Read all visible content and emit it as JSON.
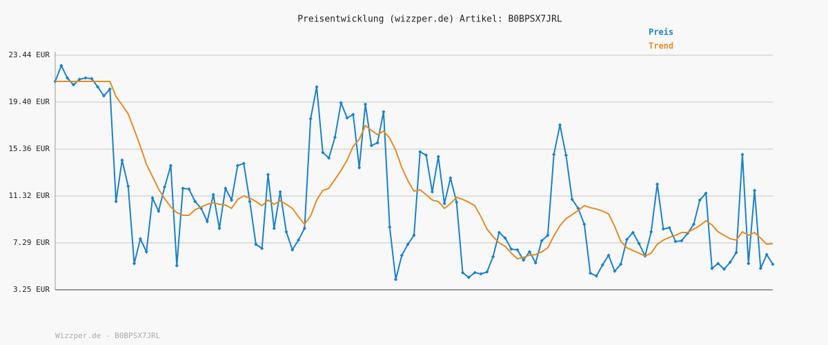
{
  "chart_data": {
    "type": "line",
    "title": "Preisentwicklung (wizzper.de) Artikel: B0BPSX7JRL",
    "footer": "Wizzper.de - B0BPSX7JRL",
    "ylim": [
      3.25,
      23.44
    ],
    "yticks": [
      {
        "value": 3.25,
        "label": "3.25 EUR"
      },
      {
        "value": 7.29,
        "label": "7.29 EUR"
      },
      {
        "value": 11.32,
        "label": "11.32 EUR"
      },
      {
        "value": 15.36,
        "label": "15.36 EUR"
      },
      {
        "value": 19.4,
        "label": "19.40 EUR"
      },
      {
        "value": 23.44,
        "label": "23.44 EUR"
      }
    ],
    "grid": true,
    "legend": "top-right",
    "series": [
      {
        "name": "Preis",
        "color": "#1a80c4",
        "markers": true,
        "values": [
          21.18,
          22.55,
          21.48,
          20.89,
          21.36,
          21.48,
          21.42,
          20.71,
          19.94,
          20.53,
          10.85,
          14.41,
          12.16,
          5.51,
          7.64,
          6.52,
          11.15,
          10.02,
          12.1,
          13.94,
          5.33,
          11.98,
          11.92,
          10.85,
          10.26,
          9.13,
          11.44,
          8.54,
          11.98,
          10.97,
          13.94,
          14.12,
          10.85,
          7.17,
          6.81,
          13.17,
          8.54,
          11.68,
          8.24,
          6.69,
          7.53,
          8.54,
          17.98,
          20.71,
          15.07,
          14.59,
          16.37,
          19.34,
          18.04,
          18.33,
          13.76,
          19.22,
          15.66,
          15.9,
          18.57,
          8.65,
          4.14,
          6.22,
          7.17,
          7.94,
          15.13,
          14.83,
          11.68,
          14.71,
          10.67,
          12.87,
          10.79,
          4.73,
          4.32,
          4.73,
          4.62,
          4.79,
          6.1,
          8.18,
          7.7,
          6.75,
          6.69,
          5.8,
          6.52,
          5.57,
          7.47,
          7.94,
          14.89,
          17.44,
          14.83,
          11.03,
          10.26,
          8.89,
          4.68,
          4.44,
          5.39,
          6.22,
          4.85,
          5.45,
          7.58,
          8.18,
          7.23,
          6.16,
          8.24,
          12.34,
          8.48,
          8.59,
          7.41,
          7.47,
          8.12,
          8.89,
          10.97,
          11.56,
          5.09,
          5.51,
          5.03,
          5.63,
          6.46,
          14.89,
          5.51,
          11.8,
          5.09,
          6.28,
          5.45
        ]
      },
      {
        "name": "Trend",
        "color": "#e08c26",
        "markers": false,
        "values": [
          21.18,
          21.18,
          21.18,
          21.18,
          21.18,
          21.18,
          21.18,
          21.18,
          21.18,
          21.18,
          19.88,
          19.16,
          18.39,
          17.03,
          15.6,
          14.06,
          12.99,
          11.92,
          11.09,
          10.38,
          9.9,
          9.66,
          9.66,
          10.14,
          10.38,
          10.61,
          10.73,
          10.61,
          10.55,
          10.26,
          11.03,
          11.33,
          11.15,
          10.85,
          10.49,
          10.97,
          10.61,
          10.91,
          10.61,
          10.26,
          9.54,
          8.89,
          9.6,
          10.97,
          11.8,
          11.98,
          12.75,
          13.52,
          14.41,
          15.6,
          16.2,
          17.38,
          16.97,
          16.61,
          16.91,
          16.31,
          15.25,
          13.76,
          12.63,
          11.74,
          11.86,
          11.44,
          10.97,
          10.85,
          10.26,
          10.67,
          11.21,
          11.03,
          10.79,
          10.49,
          9.54,
          8.48,
          7.82,
          7.29,
          6.99,
          6.4,
          5.92,
          6.04,
          6.22,
          6.28,
          6.52,
          6.87,
          7.88,
          8.77,
          9.37,
          9.72,
          10.08,
          10.49,
          10.32,
          10.2,
          10.02,
          9.78,
          8.71,
          7.41,
          6.87,
          6.63,
          6.4,
          6.16,
          6.4,
          7.17,
          7.53,
          7.76,
          7.94,
          8.18,
          8.18,
          8.48,
          8.77,
          9.19,
          8.83,
          8.24,
          7.94,
          7.64,
          7.53,
          8.24,
          7.94,
          8.18,
          7.7,
          7.17,
          7.23
        ]
      }
    ]
  }
}
